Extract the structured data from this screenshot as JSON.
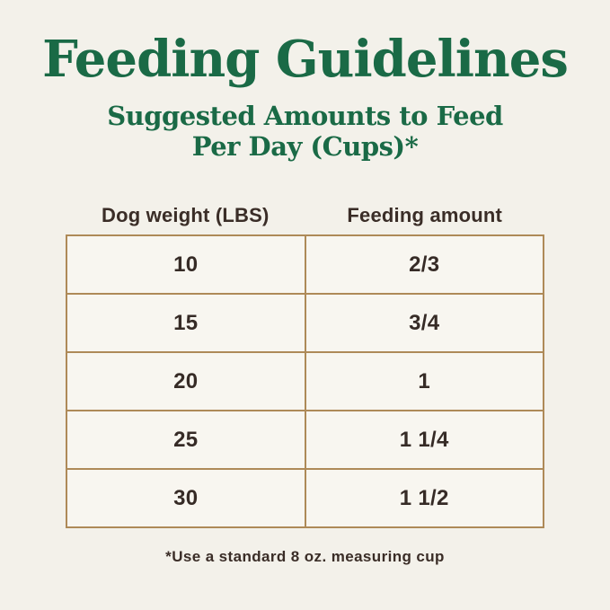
{
  "page": {
    "title": "Feeding Guidelines",
    "subtitle_line1": "Suggested Amounts to Feed",
    "subtitle_line2": "Per Day (Cups)*",
    "footnote": "*Use a standard 8 oz. measuring cup"
  },
  "table": {
    "columns": [
      "Dog weight (LBS)",
      "Feeding amount"
    ],
    "rows": [
      {
        "weight": "10",
        "amount": "2/3"
      },
      {
        "weight": "15",
        "amount": "3/4"
      },
      {
        "weight": "20",
        "amount": "1"
      },
      {
        "weight": "25",
        "amount": "1 1/4"
      },
      {
        "weight": "30",
        "amount": "1 1/2"
      }
    ]
  },
  "colors": {
    "background": "#f3f1ea",
    "heading_green": "#1a6a46",
    "border_brown": "#ae8a58",
    "text_dark": "#3a2d27",
    "cell_background": "#f8f6f0"
  },
  "chart_data": {
    "type": "table",
    "title": "Feeding Guidelines",
    "subtitle": "Suggested Amounts to Feed Per Day (Cups)*",
    "columns": [
      "Dog weight (LBS)",
      "Feeding amount"
    ],
    "rows": [
      [
        "10",
        "2/3"
      ],
      [
        "15",
        "3/4"
      ],
      [
        "20",
        "1"
      ],
      [
        "25",
        "1 1/4"
      ],
      [
        "30",
        "1 1/2"
      ]
    ],
    "weights_lbs": [
      10,
      15,
      20,
      25,
      30
    ],
    "feeding_amount_cups": [
      0.667,
      0.75,
      1,
      1.25,
      1.5
    ],
    "footnote": "*Use a standard 8 oz. measuring cup"
  }
}
